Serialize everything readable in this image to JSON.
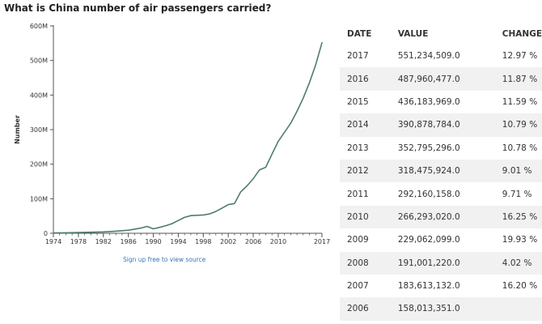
{
  "chart_data": {
    "type": "line",
    "title": "What is China number of air passengers carried?",
    "ylabel": "Number",
    "xlabel": "",
    "xlim": [
      1974,
      2017
    ],
    "ylim": [
      0,
      600000000
    ],
    "y_ticks": [
      "0",
      "100M",
      "200M",
      "300M",
      "400M",
      "500M",
      "600M"
    ],
    "x_ticks": [
      "1974",
      "1978",
      "1982",
      "1986",
      "1990",
      "1994",
      "1998",
      "2002",
      "2006",
      "2010",
      "2017"
    ],
    "grid": false,
    "legend": "none",
    "line_color": "#4f7d67",
    "x": [
      1974,
      1976,
      1978,
      1980,
      1982,
      1984,
      1986,
      1987,
      1988,
      1989,
      1990,
      1991,
      1992,
      1993,
      1994,
      1995,
      1996,
      1997,
      1998,
      1999,
      2000,
      2001,
      2002,
      2003,
      2004,
      2005,
      2006,
      2007,
      2008,
      2009,
      2010,
      2011,
      2012,
      2013,
      2014,
      2015,
      2016,
      2017
    ],
    "series": [
      {
        "values": [
          1000000,
          1500000,
          2000000,
          3000000,
          4000000,
          6000000,
          9000000,
          12000000,
          15000000,
          20000000,
          13000000,
          17000000,
          22000000,
          28000000,
          37000000,
          46000000,
          51000000,
          52000000,
          53000000,
          56000000,
          63000000,
          73000000,
          83000000,
          86000000,
          120000000,
          137000000,
          158013351,
          183613132,
          191001220,
          229062099,
          266293020,
          292160158,
          318475924,
          352795296,
          390878784,
          436183969,
          487960477,
          551234509
        ]
      }
    ]
  },
  "source_link": "Sign up free to view source",
  "table": {
    "headers": [
      "DATE",
      "VALUE",
      "CHANGE"
    ],
    "rows": [
      {
        "date": "2017",
        "value": "551,234,509.0",
        "change": "12.97 %"
      },
      {
        "date": "2016",
        "value": "487,960,477.0",
        "change": "11.87 %"
      },
      {
        "date": "2015",
        "value": "436,183,969.0",
        "change": "11.59 %"
      },
      {
        "date": "2014",
        "value": "390,878,784.0",
        "change": "10.79 %"
      },
      {
        "date": "2013",
        "value": "352,795,296.0",
        "change": "10.78 %"
      },
      {
        "date": "2012",
        "value": "318,475,924.0",
        "change": "9.01 %"
      },
      {
        "date": "2011",
        "value": "292,160,158.0",
        "change": "9.71 %"
      },
      {
        "date": "2010",
        "value": "266,293,020.0",
        "change": "16.25 %"
      },
      {
        "date": "2009",
        "value": "229,062,099.0",
        "change": "19.93 %"
      },
      {
        "date": "2008",
        "value": "191,001,220.0",
        "change": "4.02 %"
      },
      {
        "date": "2007",
        "value": "183,613,132.0",
        "change": "16.20 %"
      },
      {
        "date": "2006",
        "value": "158,013,351.0",
        "change": ""
      }
    ]
  }
}
